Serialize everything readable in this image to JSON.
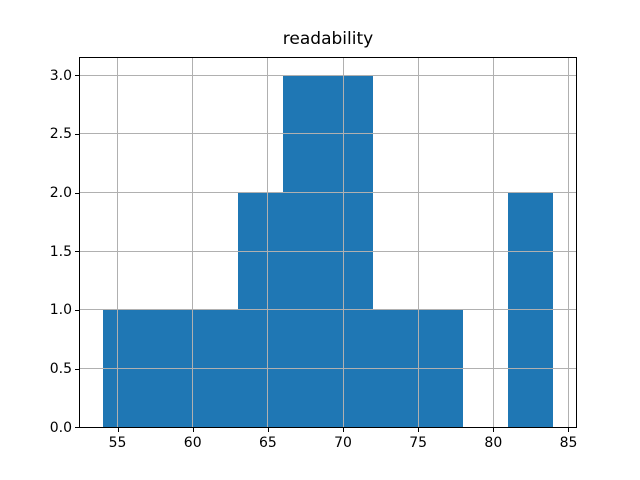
{
  "figure": {
    "background": "#ffffff"
  },
  "chart_data": {
    "type": "bar",
    "subtype": "histogram",
    "title": "readability",
    "xlabel": "",
    "ylabel": "",
    "bin_edges": [
      54,
      57,
      60,
      63,
      66,
      69,
      72,
      75,
      78,
      81,
      84
    ],
    "counts": [
      1,
      1,
      1,
      2,
      3,
      3,
      1,
      1,
      0,
      2
    ],
    "xlim": [
      52.5,
      85.5
    ],
    "ylim": [
      0,
      3.15
    ],
    "xtick_labels": [
      "55",
      "60",
      "65",
      "70",
      "75",
      "80",
      "85"
    ],
    "xtick_values": [
      55,
      60,
      65,
      70,
      75,
      80,
      85
    ],
    "ytick_labels": [
      "0.0",
      "0.5",
      "1.0",
      "1.5",
      "2.0",
      "2.5",
      "3.0"
    ],
    "ytick_values": [
      0,
      0.5,
      1,
      1.5,
      2,
      2.5,
      3
    ],
    "grid": true,
    "legend": null,
    "colors": {
      "bar": "#1f77b4",
      "grid": "#b0b0b0",
      "spine": "#000000",
      "text": "#000000"
    }
  }
}
